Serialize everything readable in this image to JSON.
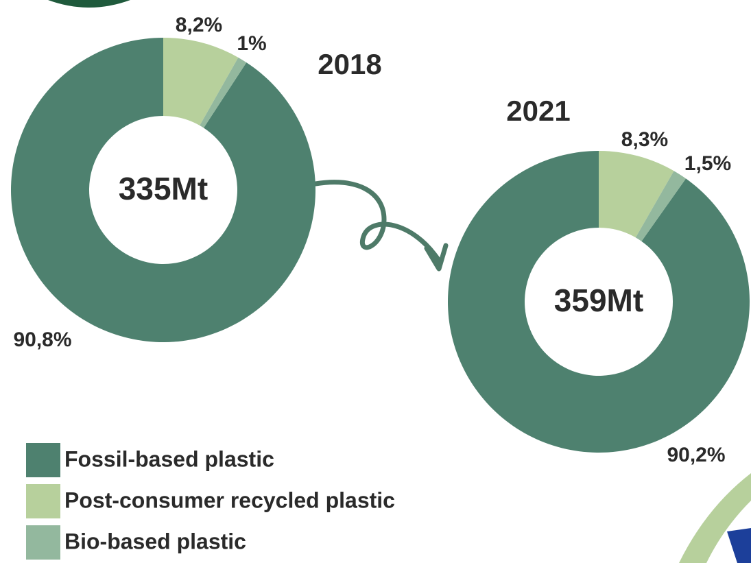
{
  "legend": [
    {
      "name": "Fossil-based plastic",
      "color": "#4e816f"
    },
    {
      "name": "Post-consumer recycled plastic",
      "color": "#b7d09c"
    },
    {
      "name": "Bio-based plastic",
      "color": "#93b89e"
    }
  ],
  "chart_data": [
    {
      "type": "donut",
      "title": "2018",
      "center_label": "335Mt",
      "values": [
        90.8,
        8.2,
        1
      ],
      "value_labels": [
        "90,8%",
        "8,2%",
        "1%"
      ]
    },
    {
      "type": "donut",
      "title": "2021",
      "center_label": "359Mt",
      "values": [
        90.2,
        8.3,
        1.5
      ],
      "value_labels": [
        "90,2%",
        "8,3%",
        "1,5%"
      ]
    }
  ]
}
